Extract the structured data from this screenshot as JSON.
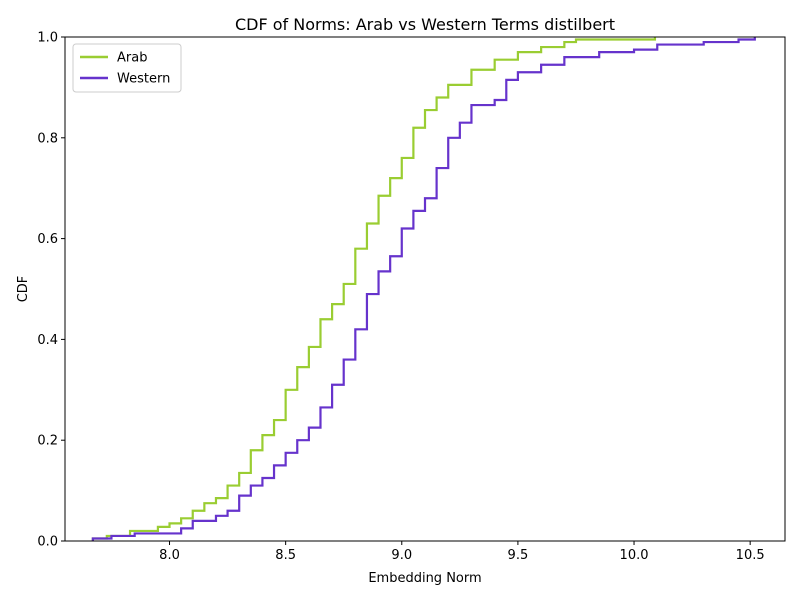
{
  "chart_data": {
    "type": "line",
    "step": true,
    "title": "CDF of Norms: Arab vs Western Terms distilbert",
    "xlabel": "Embedding Norm",
    "ylabel": "CDF",
    "xlim": [
      7.55,
      10.65
    ],
    "ylim": [
      0.0,
      1.0
    ],
    "x_ticks": [
      8.0,
      8.5,
      9.0,
      9.5,
      10.0,
      10.5
    ],
    "x_tick_labels": [
      "8.0",
      "8.5",
      "9.0",
      "9.5",
      "10.0",
      "10.5"
    ],
    "y_ticks": [
      0.0,
      0.2,
      0.4,
      0.6,
      0.8,
      1.0
    ],
    "y_tick_labels": [
      "0.0",
      "0.2",
      "0.4",
      "0.6",
      "0.8",
      "1.0"
    ],
    "grid": false,
    "legend_position": "top-left",
    "series": [
      {
        "name": "Arab",
        "color": "#9acd32",
        "points": [
          [
            7.67,
            0.0
          ],
          [
            7.67,
            0.005
          ],
          [
            7.73,
            0.01
          ],
          [
            7.83,
            0.02
          ],
          [
            7.95,
            0.028
          ],
          [
            8.0,
            0.035
          ],
          [
            8.05,
            0.045
          ],
          [
            8.1,
            0.06
          ],
          [
            8.15,
            0.075
          ],
          [
            8.2,
            0.085
          ],
          [
            8.25,
            0.11
          ],
          [
            8.3,
            0.135
          ],
          [
            8.35,
            0.18
          ],
          [
            8.4,
            0.21
          ],
          [
            8.45,
            0.24
          ],
          [
            8.5,
            0.3
          ],
          [
            8.55,
            0.345
          ],
          [
            8.6,
            0.385
          ],
          [
            8.65,
            0.44
          ],
          [
            8.7,
            0.47
          ],
          [
            8.75,
            0.51
          ],
          [
            8.8,
            0.58
          ],
          [
            8.85,
            0.63
          ],
          [
            8.9,
            0.685
          ],
          [
            8.95,
            0.72
          ],
          [
            9.0,
            0.76
          ],
          [
            9.05,
            0.82
          ],
          [
            9.1,
            0.855
          ],
          [
            9.15,
            0.88
          ],
          [
            9.2,
            0.905
          ],
          [
            9.3,
            0.935
          ],
          [
            9.4,
            0.955
          ],
          [
            9.5,
            0.97
          ],
          [
            9.6,
            0.98
          ],
          [
            9.7,
            0.99
          ],
          [
            9.75,
            0.995
          ],
          [
            10.09,
            1.0
          ]
        ]
      },
      {
        "name": "Western",
        "color": "#6633cc",
        "points": [
          [
            7.67,
            0.0
          ],
          [
            7.67,
            0.005
          ],
          [
            7.75,
            0.01
          ],
          [
            7.85,
            0.015
          ],
          [
            8.0,
            0.015
          ],
          [
            8.05,
            0.025
          ],
          [
            8.1,
            0.04
          ],
          [
            8.2,
            0.05
          ],
          [
            8.25,
            0.06
          ],
          [
            8.3,
            0.09
          ],
          [
            8.35,
            0.11
          ],
          [
            8.4,
            0.125
          ],
          [
            8.45,
            0.15
          ],
          [
            8.5,
            0.175
          ],
          [
            8.55,
            0.2
          ],
          [
            8.6,
            0.225
          ],
          [
            8.65,
            0.265
          ],
          [
            8.7,
            0.31
          ],
          [
            8.75,
            0.36
          ],
          [
            8.8,
            0.42
          ],
          [
            8.85,
            0.49
          ],
          [
            8.9,
            0.535
          ],
          [
            8.95,
            0.565
          ],
          [
            9.0,
            0.62
          ],
          [
            9.05,
            0.655
          ],
          [
            9.1,
            0.68
          ],
          [
            9.15,
            0.74
          ],
          [
            9.2,
            0.8
          ],
          [
            9.25,
            0.83
          ],
          [
            9.3,
            0.865
          ],
          [
            9.4,
            0.875
          ],
          [
            9.45,
            0.915
          ],
          [
            9.5,
            0.93
          ],
          [
            9.6,
            0.945
          ],
          [
            9.7,
            0.96
          ],
          [
            9.85,
            0.97
          ],
          [
            10.0,
            0.975
          ],
          [
            10.1,
            0.985
          ],
          [
            10.3,
            0.99
          ],
          [
            10.45,
            0.995
          ],
          [
            10.52,
            1.0
          ]
        ]
      }
    ]
  }
}
